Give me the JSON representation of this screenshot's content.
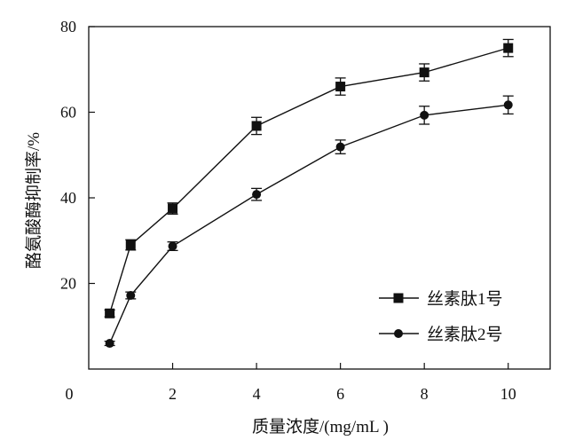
{
  "chart_data": {
    "type": "line",
    "xlabel": "质量浓度/(mg/mL )",
    "ylabel": "酪氨酸酶抑制率/%",
    "xlim": [
      0,
      11
    ],
    "ylim": [
      0,
      80
    ],
    "x_ticks": [
      2,
      4,
      6,
      8,
      10
    ],
    "y_ticks": [
      20,
      40,
      60,
      80
    ],
    "origin_label": "0",
    "grid": false,
    "legend_position": "bottom-right",
    "series": [
      {
        "name": "丝素肽1号",
        "marker": "square",
        "color": "#111111",
        "points": [
          {
            "x": 0.5,
            "y": 13.0,
            "err": 0.8
          },
          {
            "x": 1,
            "y": 29.0,
            "err": 1.2
          },
          {
            "x": 2,
            "y": 37.5,
            "err": 1.3
          },
          {
            "x": 4,
            "y": 56.8,
            "err": 2.0
          },
          {
            "x": 6,
            "y": 66.0,
            "err": 2.0
          },
          {
            "x": 8,
            "y": 69.3,
            "err": 2.0
          },
          {
            "x": 10,
            "y": 75.0,
            "err": 2.0
          }
        ]
      },
      {
        "name": "丝素肽2号",
        "marker": "circle",
        "color": "#111111",
        "points": [
          {
            "x": 0.5,
            "y": 6.0,
            "err": 0.5
          },
          {
            "x": 1,
            "y": 17.2,
            "err": 0.8
          },
          {
            "x": 2,
            "y": 28.7,
            "err": 1.0
          },
          {
            "x": 4,
            "y": 40.8,
            "err": 1.4
          },
          {
            "x": 6,
            "y": 51.9,
            "err": 1.6
          },
          {
            "x": 8,
            "y": 59.3,
            "err": 2.1
          },
          {
            "x": 10,
            "y": 61.7,
            "err": 2.1
          }
        ]
      }
    ]
  }
}
